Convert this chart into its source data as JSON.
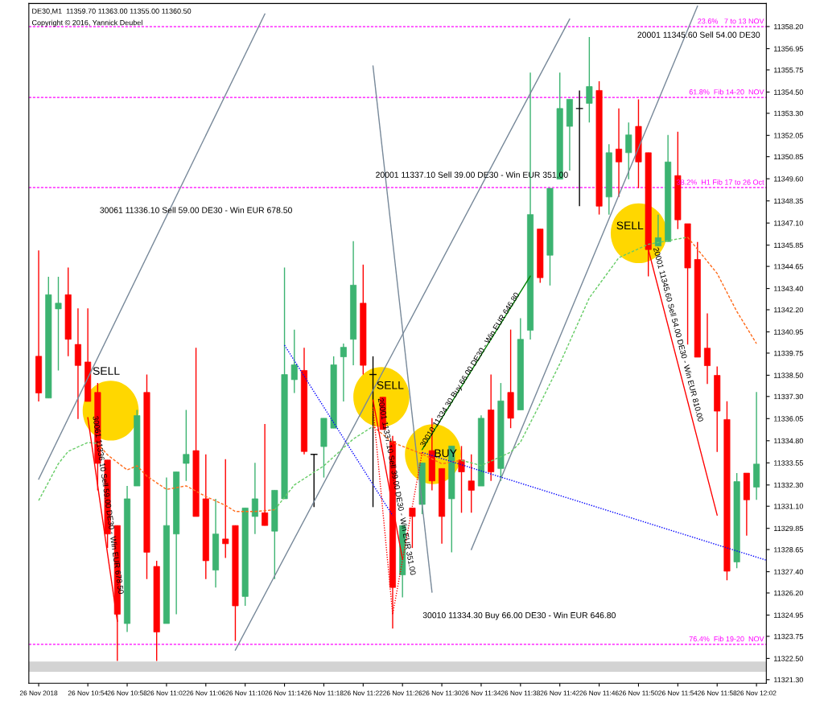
{
  "chart_data": {
    "type": "candlestick",
    "x": [
      "2018-11-26T10:49",
      "2018-11-26T10:50",
      "2018-11-26T10:51",
      "2018-11-26T10:52",
      "2018-11-26T10:53",
      "2018-11-26T10:54",
      "2018-11-26T10:55",
      "2018-11-26T10:56",
      "2018-11-26T10:57",
      "2018-11-26T10:58",
      "2018-11-26T10:59",
      "2018-11-26T11:00",
      "2018-11-26T11:01",
      "2018-11-26T11:02",
      "2018-11-26T11:03",
      "2018-11-26T11:04",
      "2018-11-26T11:05",
      "2018-11-26T11:06",
      "2018-11-26T11:07",
      "2018-11-26T11:08",
      "2018-11-26T11:09",
      "2018-11-26T11:10",
      "2018-11-26T11:11",
      "2018-11-26T11:12",
      "2018-11-26T11:13",
      "2018-11-26T11:14",
      "2018-11-26T11:15",
      "2018-11-26T11:16",
      "2018-11-26T11:17",
      "2018-11-26T11:18",
      "2018-11-26T11:19",
      "2018-11-26T11:20",
      "2018-11-26T11:21",
      "2018-11-26T11:22",
      "2018-11-26T11:23",
      "2018-11-26T11:24",
      "2018-11-26T11:25",
      "2018-11-26T11:26",
      "2018-11-26T11:27",
      "2018-11-26T11:28",
      "2018-11-26T11:29",
      "2018-11-26T11:30",
      "2018-11-26T11:31",
      "2018-11-26T11:32",
      "2018-11-26T11:33",
      "2018-11-26T11:34",
      "2018-11-26T11:35",
      "2018-11-26T11:36",
      "2018-11-26T11:37",
      "2018-11-26T11:38",
      "2018-11-26T11:39",
      "2018-11-26T11:40",
      "2018-11-26T11:41",
      "2018-11-26T11:42",
      "2018-11-26T11:43",
      "2018-11-26T11:44",
      "2018-11-26T11:45",
      "2018-11-26T11:46",
      "2018-11-26T11:47",
      "2018-11-26T11:48",
      "2018-11-26T11:49",
      "2018-11-26T11:50",
      "2018-11-26T11:51",
      "2018-11-26T11:52",
      "2018-11-26T11:53",
      "2018-11-26T11:54",
      "2018-11-26T11:55",
      "2018-11-26T11:56",
      "2018-11-26T11:57",
      "2018-11-26T11:58",
      "2018-11-26T11:59",
      "2018-11-26T12:00",
      "2018-11-26T12:01",
      "2018-11-26T12:02"
    ],
    "ohlc": [
      [
        11339.57,
        11345.55,
        11337.02,
        11337.5
      ],
      [
        11337.21,
        11344.06,
        11337.21,
        11343.05
      ],
      [
        11342.25,
        11344.06,
        11338.77,
        11342.57
      ],
      [
        11343.05,
        11344.59,
        11339.57,
        11340.53
      ],
      [
        11340.24,
        11342.28,
        11336.03,
        11339.05
      ],
      [
        11339.25,
        11342.28,
        11337.02,
        11337.02
      ],
      [
        11337.53,
        11338.06,
        11332.0,
        11333.52
      ],
      [
        11333.71,
        11333.71,
        11328.74,
        11329.53
      ],
      [
        11330.01,
        11330.01,
        11322.36,
        11325.0
      ],
      [
        11324.47,
        11332.24,
        11324.0,
        11331.52
      ],
      [
        11332.24,
        11336.54,
        11332.24,
        11336.22
      ],
      [
        11337.53,
        11338.54,
        11326.98,
        11328.5
      ],
      [
        11327.7,
        11328.02,
        11322.36,
        11323.99
      ],
      [
        11324.47,
        11332.72,
        11324.47,
        11330.01
      ],
      [
        11329.53,
        11333.04,
        11324.99,
        11333.04
      ],
      [
        11333.52,
        11336.54,
        11332.53,
        11334.03
      ],
      [
        11334.24,
        11340.05,
        11330.52,
        11330.52
      ],
      [
        11331.52,
        11334.03,
        11326.98,
        11328.02
      ],
      [
        11327.49,
        11331.52,
        11326.51,
        11329.53
      ],
      [
        11329.25,
        11333.76,
        11328.18,
        11328.98
      ],
      [
        11330.01,
        11330.01,
        11323.48,
        11325.47
      ],
      [
        11326.0,
        11331.0,
        11325.47,
        11331.0
      ],
      [
        11330.52,
        11333.55,
        11329.53,
        11331.52
      ],
      [
        11330.73,
        11335.75,
        11330.01,
        11330.01
      ],
      [
        11329.69,
        11332.0,
        11326.98,
        11332.0
      ],
      [
        11331.52,
        11344.59,
        11331.52,
        11338.54
      ],
      [
        11338.25,
        11341.08,
        11337.5,
        11339.09
      ],
      [
        11338.77,
        11340.05,
        11334.03,
        11334.19
      ],
      [
        11334.03,
        11334.03,
        11331.05,
        11334.03
      ],
      [
        11334.47,
        11336.07,
        11332.72,
        11336.07
      ],
      [
        11335.51,
        11339.57,
        11335.51,
        11339.09
      ],
      [
        11339.54,
        11340.29,
        11337.02,
        11340.08
      ],
      [
        11340.53,
        11346.07,
        11339.06,
        11343.59
      ],
      [
        11342.57,
        11344.75,
        11338.54,
        11339.06
      ],
      [
        11338.54,
        11339.57,
        11331.05,
        11338.54
      ],
      [
        11337.26,
        11337.26,
        11335.43,
        11335.43
      ],
      [
        11334.76,
        11335.08,
        11324.19,
        11326.51
      ],
      [
        11327.22,
        11330.01,
        11325.95,
        11330.01
      ],
      [
        11331.0,
        11331.0,
        11328.74,
        11330.52
      ],
      [
        11331.2,
        11333.55,
        11330.65,
        11333.55
      ],
      [
        11334.24,
        11336.07,
        11332.0,
        11332.53
      ],
      [
        11333.23,
        11333.23,
        11328.98,
        11330.52
      ],
      [
        11331.52,
        11334.5,
        11328.5,
        11334.5
      ],
      [
        11333.71,
        11334.5,
        11330.73,
        11333.04
      ],
      [
        11332.53,
        11334.03,
        11330.73,
        11332.0
      ],
      [
        11332.24,
        11336.23,
        11332.24,
        11336.07
      ],
      [
        11336.54,
        11338.54,
        11332.53,
        11333.04
      ],
      [
        11333.23,
        11338.06,
        11332.53,
        11337.05
      ],
      [
        11337.53,
        11341.08,
        11335.51,
        11336.07
      ],
      [
        11336.54,
        11341.72,
        11336.54,
        11340.53
      ],
      [
        11341.04,
        11355.6,
        11340.52,
        11347.58
      ],
      [
        11346.76,
        11346.76,
        11343.72,
        11344.01
      ],
      [
        11345.28,
        11349.06,
        11343.57,
        11349.06
      ],
      [
        11349.58,
        11355.6,
        11349.58,
        11353.57
      ],
      [
        11352.56,
        11354.09,
        11350.06,
        11354.09
      ],
      [
        11353.57,
        11354.59,
        11348.05,
        11353.57
      ],
      [
        11353.86,
        11357.61,
        11352.78,
        11354.81
      ],
      [
        11354.59,
        11355.11,
        11347.58,
        11348.05
      ],
      [
        11348.57,
        11351.55,
        11347.58,
        11351.07
      ],
      [
        11351.28,
        11353.57,
        11348.57,
        11350.55
      ],
      [
        11351.07,
        11352.78,
        11349.58,
        11352.08
      ],
      [
        11352.56,
        11354.09,
        11349.06,
        11350.55
      ],
      [
        11351.07,
        11351.07,
        11344.09,
        11345.6
      ],
      [
        11345.8,
        11347.58,
        11345.8,
        11346.27
      ],
      [
        11346.05,
        11352.08,
        11346.05,
        11350.55
      ],
      [
        11349.78,
        11352.26,
        11346.76,
        11347.28
      ],
      [
        11347.06,
        11347.06,
        11340.23,
        11344.56
      ],
      [
        11345.04,
        11346.03,
        11339.52,
        11339.52
      ],
      [
        11340.03,
        11342.0,
        11338.01,
        11339.04
      ],
      [
        11338.49,
        11339.0,
        11334.17,
        11336.47
      ],
      [
        11336.0,
        11337.03,
        11326.92,
        11327.43
      ],
      [
        11327.95,
        11332.97,
        11327.6,
        11332.49
      ],
      [
        11332.97,
        11332.97,
        11329.44,
        11331.46
      ],
      [
        11332.18,
        11337.55,
        11331.46,
        11333.48
      ]
    ],
    "colors": [
      "#ff0000",
      "#3cb371",
      "#3cb371",
      "#ff0000",
      "#ff0000",
      "#ff0000",
      "#ff0000",
      "#ff0000",
      "#ff0000",
      "#3cb371",
      "#3cb371",
      "#ff0000",
      "#ff0000",
      "#3cb371",
      "#3cb371",
      "#3cb371",
      "#ff0000",
      "#ff0000",
      "#3cb371",
      "#ff0000",
      "#ff0000",
      "#3cb371",
      "#3cb371",
      "#ff0000",
      "#3cb371",
      "#3cb371",
      "#3cb371",
      "#ff0000",
      "#000000",
      "#3cb371",
      "#3cb371",
      "#3cb371",
      "#3cb371",
      "#ff0000",
      "#000000",
      "#ff0000",
      "#ff0000",
      "#3cb371",
      "#ff0000",
      "#3cb371",
      "#ff0000",
      "#ff0000",
      "#3cb371",
      "#ff0000",
      "#ff0000",
      "#3cb371",
      "#ff0000",
      "#3cb371",
      "#ff0000",
      "#3cb371",
      "#3cb371",
      "#ff0000",
      "#3cb371",
      "#3cb371",
      "#3cb371",
      "#000000",
      "#3cb371",
      "#ff0000",
      "#3cb371",
      "#ff0000",
      "#3cb371",
      "#ff0000",
      "#ff0000",
      "#3cb371",
      "#3cb371",
      "#ff0000",
      "#ff0000",
      "#ff0000",
      "#ff0000",
      "#ff0000",
      "#ff0000",
      "#3cb371",
      "#ff0000",
      "#3cb371"
    ],
    "series": [
      {
        "type": "line",
        "x": [
          "2018-11-26T10:49",
          "2018-11-26T11:12"
        ],
        "values": [
          11332.63,
          11358.91
        ],
        "color": "#778899",
        "line_style": "solid"
      },
      {
        "type": "line",
        "x": [
          "2018-11-26T11:09",
          "2018-11-26T11:43"
        ],
        "values": [
          11322.97,
          11358.62
        ],
        "color": "#778899",
        "line_style": "solid"
      },
      {
        "type": "line",
        "x": [
          "2018-11-26T11:23",
          "2018-11-26T11:29"
        ],
        "values": [
          11355.97,
          11326.25
        ],
        "color": "#778899",
        "line_style": "solid"
      },
      {
        "type": "line",
        "x": [
          "2018-11-26T11:33",
          "2018-11-26T11:56"
        ],
        "values": [
          11328.65,
          11359.35
        ],
        "color": "#778899",
        "line_style": "solid"
      },
      {
        "type": "line",
        "x": [
          "2018-11-26T10:49",
          "2018-11-26T10:51",
          "2018-11-26T10:52",
          "2018-11-26T10:54",
          "2018-11-26T10:55"
        ],
        "values": [
          11331.42,
          11333.5,
          11334.2,
          11334.7,
          11334.65
        ],
        "color": "#66cc66",
        "line_style": "dashed"
      },
      {
        "type": "line",
        "x": [
          "2018-11-26T10:55",
          "2018-11-26T10:56",
          "2018-11-26T10:58",
          "2018-11-26T10:59",
          "2018-11-26T11:00",
          "2018-11-26T11:02",
          "2018-11-26T11:04",
          "2018-11-26T11:06",
          "2018-11-26T11:08",
          "2018-11-26T11:09",
          "2018-11-26T11:11",
          "2018-11-26T11:13"
        ],
        "values": [
          11334.65,
          11334.0,
          11333.15,
          11333.38,
          11332.8,
          11332.05,
          11332.25,
          11331.65,
          11331.15,
          11330.8,
          11330.8,
          11330.9
        ],
        "color": "#ff6a1a",
        "line_style": "dashed"
      },
      {
        "type": "line",
        "x": [
          "2018-11-26T11:13",
          "2018-11-26T11:15",
          "2018-11-26T11:18",
          "2018-11-26T11:21",
          "2018-11-26T11:23"
        ],
        "values": [
          11330.9,
          11332.3,
          11333.38,
          11334.9,
          11335.61
        ],
        "color": "#66cc66",
        "line_style": "dashed"
      },
      {
        "type": "line",
        "x": [
          "2018-11-26T11:23",
          "2018-11-26T11:25",
          "2018-11-26T11:28",
          "2018-11-26T11:30",
          "2018-11-26T11:32"
        ],
        "values": [
          11335.61,
          11334.7,
          11334.05,
          11333.5,
          11333.69
        ],
        "color": "#ff6a1a",
        "line_style": "dashed"
      },
      {
        "type": "line",
        "x": [
          "2018-11-26T11:32",
          "2018-11-26T11:34",
          "2018-11-26T11:37",
          "2018-11-26T11:38",
          "2018-11-26T11:40",
          "2018-11-26T11:42",
          "2018-11-26T11:45",
          "2018-11-26T11:48",
          "2018-11-26T11:51",
          "2018-11-26T11:52",
          "2018-11-26T11:55"
        ],
        "values": [
          11333.69,
          11333.4,
          11334.15,
          11334.72,
          11336.9,
          11339.15,
          11342.87,
          11345.14,
          11345.9,
          11346.0,
          11346.3
        ],
        "color": "#66cc66",
        "line_style": "dashed"
      },
      {
        "type": "line",
        "x": [
          "2018-11-26T11:55",
          "2018-11-26T11:58",
          "2018-11-26T12:00",
          "2018-11-26T12:02"
        ],
        "values": [
          11346.3,
          11344.25,
          11342.1,
          11340.29
        ],
        "color": "#ff6a1a",
        "line_style": "dashed"
      },
      {
        "type": "line",
        "x": [
          "2018-11-26T11:14",
          "2018-11-26T11:25"
        ],
        "values": [
          11340.2,
          11330.57
        ],
        "color": "#0000ff",
        "line_style": "dotted"
      },
      {
        "type": "line",
        "x": [
          "2018-11-26T11:28",
          "2018-11-26T12:03"
        ],
        "values": [
          11334.14,
          11328.05
        ],
        "color": "#0000ff",
        "line_style": "dotted"
      },
      {
        "type": "line",
        "x": [
          "2018-11-26T11:23",
          "2018-11-26T11:25",
          "2018-11-26T11:28"
        ],
        "values": [
          11336.68,
          11324.99,
          11334.14
        ],
        "color": "#ff0000",
        "line_style": "dotted"
      },
      {
        "type": "line",
        "name": "30061 11336.10 Sell 59.00 DE30 - Win EUR 678.50",
        "x": [
          "2018-11-26T10:54",
          "2018-11-26T10:57"
        ],
        "values": [
          11336.1,
          11324.6
        ],
        "color": "#ff0000",
        "line_style": "solid"
      },
      {
        "type": "line",
        "name": "20001 11337.10 Sell 39.00 DE30 - Win EUR 351.00",
        "x": [
          "2018-11-26T11:23",
          "2018-11-26T11:26"
        ],
        "values": [
          11337.1,
          11328.1
        ],
        "color": "#ff0000",
        "line_style": "solid"
      },
      {
        "type": "line",
        "name": "20001 11345.60 Sell 54.00 DE30 - Win EUR 810.00",
        "x": [
          "2018-11-26T11:51",
          "2018-11-26T11:58"
        ],
        "values": [
          11345.6,
          11330.6
        ],
        "color": "#ff0000",
        "line_style": "solid"
      },
      {
        "type": "line",
        "name": "30010 11334.30 Buy 66.00 DE30 - Win EUR 646.80",
        "x": [
          "2018-11-26T11:28",
          "2018-11-26T11:39"
        ],
        "values": [
          11334.3,
          11344.1
        ],
        "color": "#008000",
        "line_style": "solid"
      }
    ],
    "ref_lines": [
      {
        "axis": "y",
        "value": 11358.2,
        "label": "23.6%   7 to 13 NOV",
        "color": "#ff00ff",
        "line_style": "dashed"
      },
      {
        "axis": "y",
        "value": 11354.2,
        "label": "61.8%  Fib 14-20  NOV",
        "color": "#ff00ff",
        "line_style": "dashed"
      },
      {
        "axis": "y",
        "value": 11349.1,
        "label": "38.2%  H1 Fib 17 to 26 Oct",
        "color": "#ff00ff",
        "line_style": "dashed"
      },
      {
        "axis": "y",
        "value": 11323.3,
        "label": "76.4%  Fib 19-20  NOV",
        "color": "#ff00ff",
        "line_style": "dashed"
      }
    ],
    "bands": [
      {
        "axis": "y",
        "from": 11321.75,
        "to": 11322.33,
        "color": "#d3d3d3"
      }
    ],
    "annotations": [
      "DE30,M1  11359.70 11363.00 11355.00 11360.50",
      "Copyright © 2016, Yannick Deubel",
      "30061 11336.10 Sell 59.00 DE30 - Win EUR 678.50",
      "20001 11337.10 Sell 39.00 DE30 - Win EUR 351.00",
      "20001 11345.60 Sell 54.00 DE30",
      "30010 11334.30 Buy 66.00 DE30 - Win EUR 646.80",
      "SELL",
      "SELL",
      "BUY",
      "SELL"
    ],
    "xlim": [
      "2018-11-26T10:48",
      "2018-11-26T12:03"
    ],
    "xticks": [
      {
        "value": "2018-11-26T10:49",
        "label": "26 Nov 2018"
      },
      {
        "value": "2018-11-26T10:54",
        "label": "26 Nov 10:54"
      },
      {
        "value": "2018-11-26T10:58",
        "label": "26 Nov 10:58"
      },
      {
        "value": "2018-11-26T11:02",
        "label": "26 Nov 11:02"
      },
      {
        "value": "2018-11-26T11:06",
        "label": "26 Nov 11:06"
      },
      {
        "value": "2018-11-26T11:10",
        "label": "26 Nov 11:10"
      },
      {
        "value": "2018-11-26T11:14",
        "label": "26 Nov 11:14"
      },
      {
        "value": "2018-11-26T11:18",
        "label": "26 Nov 11:18"
      },
      {
        "value": "2018-11-26T11:22",
        "label": "26 Nov 11:22"
      },
      {
        "value": "2018-11-26T11:26",
        "label": "26 Nov 11:26"
      },
      {
        "value": "2018-11-26T11:30",
        "label": "26 Nov 11:30"
      },
      {
        "value": "2018-11-26T11:34",
        "label": "26 Nov 11:34"
      },
      {
        "value": "2018-11-26T11:38",
        "label": "26 Nov 11:38"
      },
      {
        "value": "2018-11-26T11:42",
        "label": "26 Nov 11:42"
      },
      {
        "value": "2018-11-26T11:46",
        "label": "26 Nov 11:46"
      },
      {
        "value": "2018-11-26T11:50",
        "label": "26 Nov 11:50"
      },
      {
        "value": "2018-11-26T11:54",
        "label": "26 Nov 11:54"
      },
      {
        "value": "2018-11-26T11:58",
        "label": "26 Nov 11:58"
      },
      {
        "value": "2018-11-26T12:02",
        "label": "26 Nov 12:02"
      }
    ],
    "ylim": [
      11321.1,
      11359.5
    ],
    "yticks": [
      {
        "value": 11358.2,
        "label": "11358.20"
      },
      {
        "value": 11356.95,
        "label": "11356.95"
      },
      {
        "value": 11355.75,
        "label": "11355.75"
      },
      {
        "value": 11354.5,
        "label": "11354.50"
      },
      {
        "value": 11353.3,
        "label": "11353.30"
      },
      {
        "value": 11352.05,
        "label": "11352.05"
      },
      {
        "value": 11350.85,
        "label": "11350.85"
      },
      {
        "value": 11349.6,
        "label": "11349.60"
      },
      {
        "value": 11348.35,
        "label": "11348.35"
      },
      {
        "value": 11347.1,
        "label": "11347.10"
      },
      {
        "value": 11345.85,
        "label": "11345.85"
      },
      {
        "value": 11344.65,
        "label": "11344.65"
      },
      {
        "value": 11343.4,
        "label": "11343.40"
      },
      {
        "value": 11342.2,
        "label": "11342.20"
      },
      {
        "value": 11340.95,
        "label": "11340.95"
      },
      {
        "value": 11339.75,
        "label": "11339.75"
      },
      {
        "value": 11338.5,
        "label": "11338.50"
      },
      {
        "value": 11337.3,
        "label": "11337.30"
      },
      {
        "value": 11336.05,
        "label": "11336.05"
      },
      {
        "value": 11334.8,
        "label": "11334.80"
      },
      {
        "value": 11333.55,
        "label": "11333.55"
      },
      {
        "value": 11332.3,
        "label": "11332.30"
      },
      {
        "value": 11331.1,
        "label": "11331.10"
      },
      {
        "value": 11329.85,
        "label": "11329.85"
      },
      {
        "value": 11328.65,
        "label": "11328.65"
      },
      {
        "value": 11327.4,
        "label": "11327.40"
      },
      {
        "value": 11326.2,
        "label": "11326.20"
      },
      {
        "value": 11324.95,
        "label": "11324.95"
      },
      {
        "value": 11323.75,
        "label": "11323.75"
      },
      {
        "value": 11322.5,
        "label": "11322.50"
      },
      {
        "value": 11321.3,
        "label": "11321.30"
      }
    ],
    "grid": false,
    "legend": false
  }
}
